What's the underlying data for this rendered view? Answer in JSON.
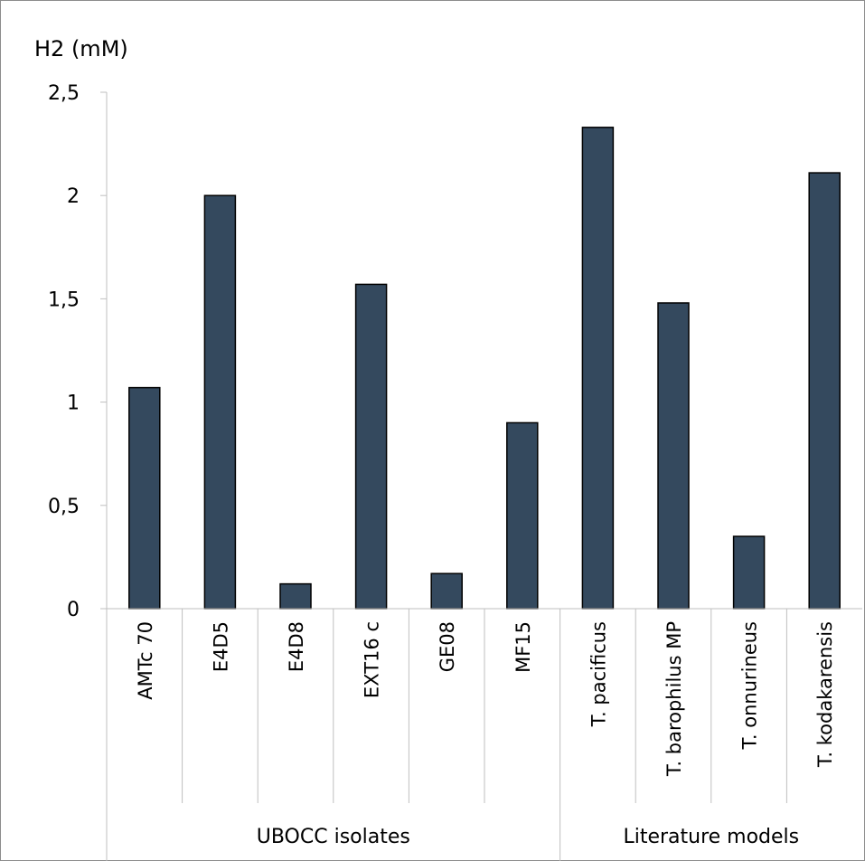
{
  "chart_data": {
    "type": "bar",
    "ylabel": "H2 (mM)",
    "ylim": [
      0,
      2.5
    ],
    "yticks": [
      "0",
      "0,5",
      "1",
      "1,5",
      "2",
      "2,5"
    ],
    "grid": false,
    "bar_color": "#34495e",
    "categories": [
      "AMTc 70",
      "E4D5",
      "E4D8",
      "EXT16 c",
      "GE08",
      "MF15",
      "T. pacificus",
      "T. barophilus MP",
      "T. onnurineus",
      "T. kodakarensis"
    ],
    "values": [
      1.07,
      2.0,
      0.12,
      1.57,
      0.17,
      0.9,
      2.33,
      1.48,
      0.35,
      2.11
    ],
    "groups": [
      {
        "label": "UBOCC isolates",
        "count": 6
      },
      {
        "label": "Literature models",
        "count": 4
      }
    ]
  }
}
